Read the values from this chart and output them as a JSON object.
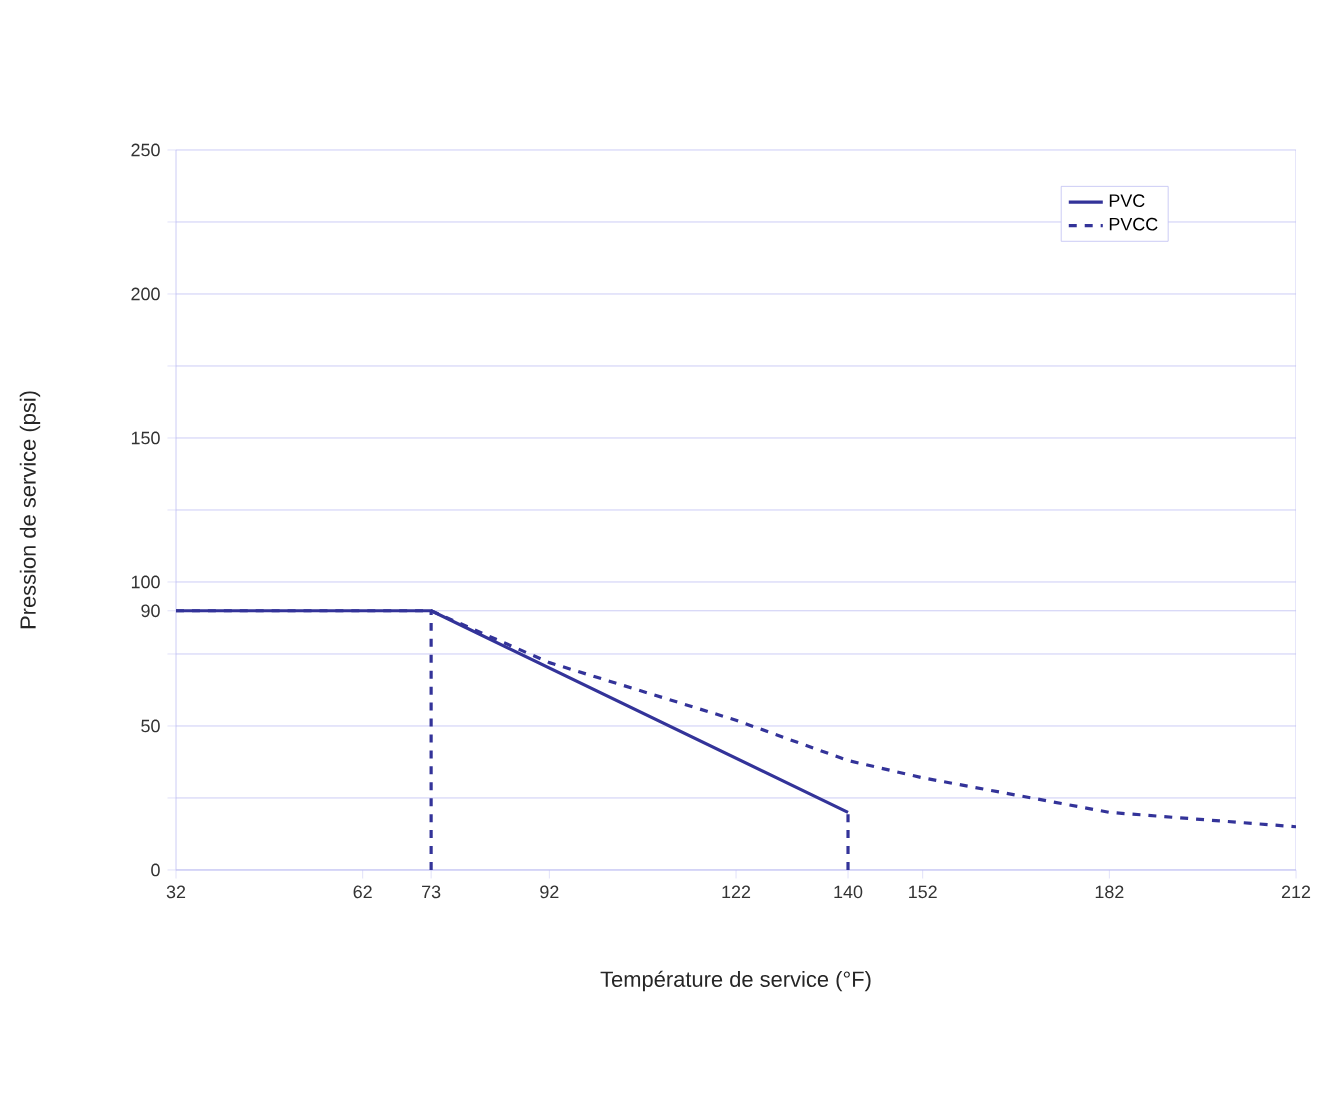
{
  "chart_data": {
    "type": "line",
    "xlabel": "Température de service (°F)",
    "ylabel": "Pression de service (psi)",
    "xlim": [
      32,
      212
    ],
    "xticks": [
      32,
      62,
      73,
      92,
      122,
      140,
      152,
      182,
      212
    ],
    "ylim": [
      0,
      250
    ],
    "yticks": [
      0,
      {
        "value": 25,
        "label": null
      },
      50,
      {
        "value": 75,
        "label": null
      },
      90,
      100,
      {
        "value": 125,
        "label": null
      },
      150,
      {
        "value": 175,
        "label": null
      },
      200,
      {
        "value": 225,
        "label": null
      },
      250
    ],
    "grid": "y",
    "legend": "top right",
    "series": [
      {
        "name": "PVC",
        "color": "#333399",
        "x": [
          32,
          73,
          140
        ],
        "values": [
          90,
          90,
          20
        ],
        "line_style": "solid"
      },
      {
        "name": "PVCC",
        "color": "#333399",
        "x": [
          32,
          73,
          92,
          122,
          140,
          152,
          182,
          212
        ],
        "values": [
          90,
          90,
          72,
          52,
          38,
          32,
          20,
          15
        ],
        "line_style": "dashed"
      },
      {
        "color": "#333399",
        "x": [
          73,
          73
        ],
        "values": [
          0,
          90
        ],
        "line_style": "dashed"
      },
      {
        "color": "#333399",
        "x": [
          140,
          140
        ],
        "values": [
          0,
          20
        ],
        "line_style": "dashed"
      }
    ]
  }
}
